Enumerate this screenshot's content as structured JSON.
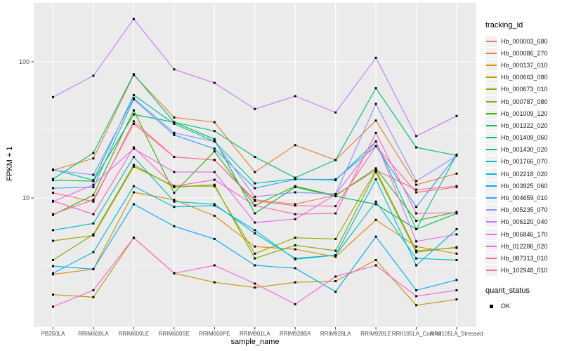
{
  "chart_data": {
    "type": "line",
    "title": "",
    "xlabel": "sample_name",
    "ylabel": "FPKM + 1",
    "y_scale": "log10",
    "y_ticks": [
      100,
      10
    ],
    "y_minor_ticks": [
      31.62,
      3.162
    ],
    "ylim": [
      1.12,
      271
    ],
    "grid": true,
    "panel_bg": "#EBEBEB",
    "grid_color": "#FFFFFF",
    "point_color": "#000000",
    "axis_text_color": "#4D4D4D",
    "tick_color": "#333333",
    "legend_position": "right",
    "categories": [
      "PB350LA",
      "RRIM600LA",
      "RRIM600LE",
      "RRIM600SE",
      "RRIM600PE",
      "RRIM901LA",
      "RRIM928BA",
      "RRIM928LA",
      "RRIM928LE",
      "RRII105LA_Control",
      "RRII105LA_Stressed"
    ],
    "series": [
      {
        "name": "Hb_000003_680",
        "color": "#F8766D",
        "values": [
          10.9,
          9.4,
          36.5,
          20,
          19,
          9.7,
          9.0,
          10.5,
          16,
          11.5,
          12.2
        ]
      },
      {
        "name": "Hb_000086_270",
        "color": "#EA8331",
        "values": [
          16,
          19.5,
          80,
          39,
          36,
          15.5,
          24.4,
          19,
          37,
          12.5,
          15.1
        ]
      },
      {
        "name": "Hb_000137_010",
        "color": "#D89000",
        "values": [
          2.75,
          3.0,
          11,
          9.7,
          7.4,
          4.4,
          4.2,
          3.7,
          6.9,
          4.4,
          3.9
        ]
      },
      {
        "name": "Hb_000663_080",
        "color": "#C09B00",
        "values": [
          1.95,
          1.87,
          5.1,
          2.8,
          2.4,
          2.2,
          2.4,
          2.45,
          3.5,
          1.63,
          1.8
        ]
      },
      {
        "name": "Hb_000673_010",
        "color": "#A3A500",
        "values": [
          4.85,
          5.3,
          17,
          12.2,
          12.2,
          3.9,
          5.1,
          5.0,
          16,
          4.1,
          4.3
        ]
      },
      {
        "name": "Hb_000787_080",
        "color": "#7CAE00",
        "values": [
          3.5,
          5.4,
          17.5,
          12.0,
          12.5,
          3.6,
          4.5,
          4.1,
          15.5,
          4.0,
          4.35
        ]
      },
      {
        "name": "Hb_001009_120",
        "color": "#39B600",
        "values": [
          7.5,
          10.5,
          44,
          10.9,
          22,
          8.8,
          12.2,
          10.4,
          16.5,
          6.8,
          7.9
        ]
      },
      {
        "name": "Hb_001322_020",
        "color": "#00BB4E",
        "values": [
          13.5,
          13.3,
          41,
          36,
          27,
          7.7,
          12.0,
          10.3,
          9.0,
          5.9,
          7.7
        ]
      },
      {
        "name": "Hb_001409_060",
        "color": "#00BF7D",
        "values": [
          13.8,
          21.4,
          81,
          36,
          31,
          20,
          14.1,
          19,
          64,
          23.5,
          20.5
        ]
      },
      {
        "name": "Hb_001430_020",
        "color": "#00C1A3",
        "values": [
          16.2,
          13.5,
          57,
          35,
          26,
          12.8,
          13.8,
          13.5,
          26,
          5.9,
          20.8
        ]
      },
      {
        "name": "Hb_001766_070",
        "color": "#00BFC4",
        "values": [
          5.8,
          6.5,
          20,
          9.4,
          9.0,
          5.5,
          3.6,
          3.8,
          9.4,
          3.6,
          3.5
        ]
      },
      {
        "name": "Hb_002218_020",
        "color": "#00BAE0",
        "values": [
          2.8,
          4.0,
          12.2,
          8.6,
          8.8,
          5.8,
          3.55,
          3.8,
          13.7,
          3.2,
          5.9
        ]
      },
      {
        "name": "Hb_003925_060",
        "color": "#00B0F6",
        "values": [
          3.16,
          3.0,
          9.0,
          6.2,
          5.0,
          3.2,
          3.05,
          2.05,
          5.2,
          2.1,
          2.5
        ]
      },
      {
        "name": "Hb_004659_010",
        "color": "#35A2FF",
        "values": [
          11.8,
          12.0,
          53,
          29,
          23,
          11.8,
          13.7,
          13.7,
          24,
          8.6,
          20.6
        ]
      },
      {
        "name": "Hb_005235_070",
        "color": "#9590FF",
        "values": [
          16.0,
          14.8,
          54,
          30,
          26,
          10.2,
          11.0,
          10.7,
          49,
          13.3,
          20.4
        ]
      },
      {
        "name": "Hb_006120_040",
        "color": "#C77CFF",
        "values": [
          55,
          79,
          206,
          88,
          70,
          45,
          56,
          42.5,
          107,
          28.5,
          40
        ]
      },
      {
        "name": "Hb_006846_170",
        "color": "#E76BF3",
        "values": [
          9.4,
          12.5,
          23,
          15.5,
          15.5,
          6.6,
          7.0,
          10.6,
          26,
          4.8,
          5.4
        ]
      },
      {
        "name": "Hb_012286_020",
        "color": "#FA62DB",
        "values": [
          1.59,
          2.1,
          5.1,
          2.8,
          3.2,
          2.35,
          1.66,
          2.65,
          3.2,
          1.9,
          2.1
        ]
      },
      {
        "name": "Hb_087313_010",
        "color": "#FF62BC",
        "values": [
          9.5,
          7.6,
          23.5,
          12.2,
          13.6,
          8.8,
          7.6,
          7.7,
          30,
          7.7,
          7.8
        ]
      },
      {
        "name": "Hb_102948_010",
        "color": "#FF6A98",
        "values": [
          7.6,
          9.7,
          35,
          20,
          19,
          9.5,
          8.8,
          8.7,
          24,
          11.0,
          12.0
        ]
      }
    ],
    "legend": {
      "tracking_title": "tracking_id",
      "quant_title": "quant_status",
      "quant_ok_label": "OK"
    }
  }
}
